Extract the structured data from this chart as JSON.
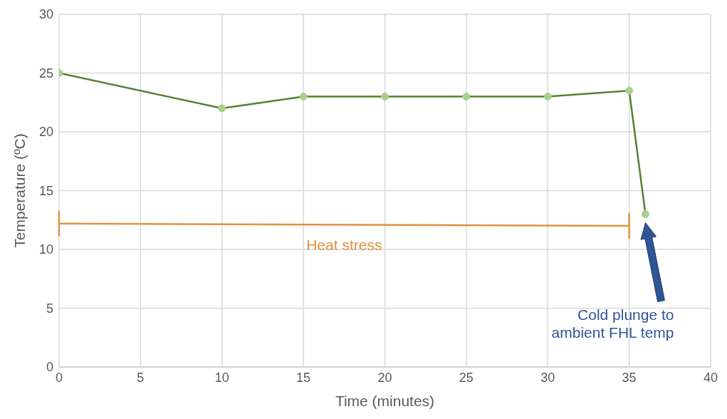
{
  "chart_data": {
    "type": "line",
    "xlabel": "Time (minutes)",
    "ylabel": "Temperature (ºC)",
    "x": [
      0,
      10,
      15,
      20,
      25,
      30,
      35,
      36
    ],
    "series": [
      {
        "color": "#548235",
        "values": [
          25,
          22,
          23,
          23,
          23,
          23,
          23.5,
          13
        ]
      },
      {
        "name": "Heat stress",
        "color": "#e2913e",
        "x": [
          0,
          35
        ],
        "values": [
          12.2,
          12
        ],
        "marker": "none"
      }
    ],
    "xlim": [
      0,
      40
    ],
    "xticks": [
      0,
      5,
      10,
      15,
      20,
      25,
      30,
      35,
      40
    ],
    "ylim": [
      0,
      30
    ],
    "yticks": [
      0,
      5,
      10,
      15,
      20,
      25,
      30
    ],
    "grid": true,
    "legend": false,
    "marker": "circle",
    "line_style": "solid",
    "annotations": [
      "Cold plunge to ambient FHL temp"
    ]
  }
}
